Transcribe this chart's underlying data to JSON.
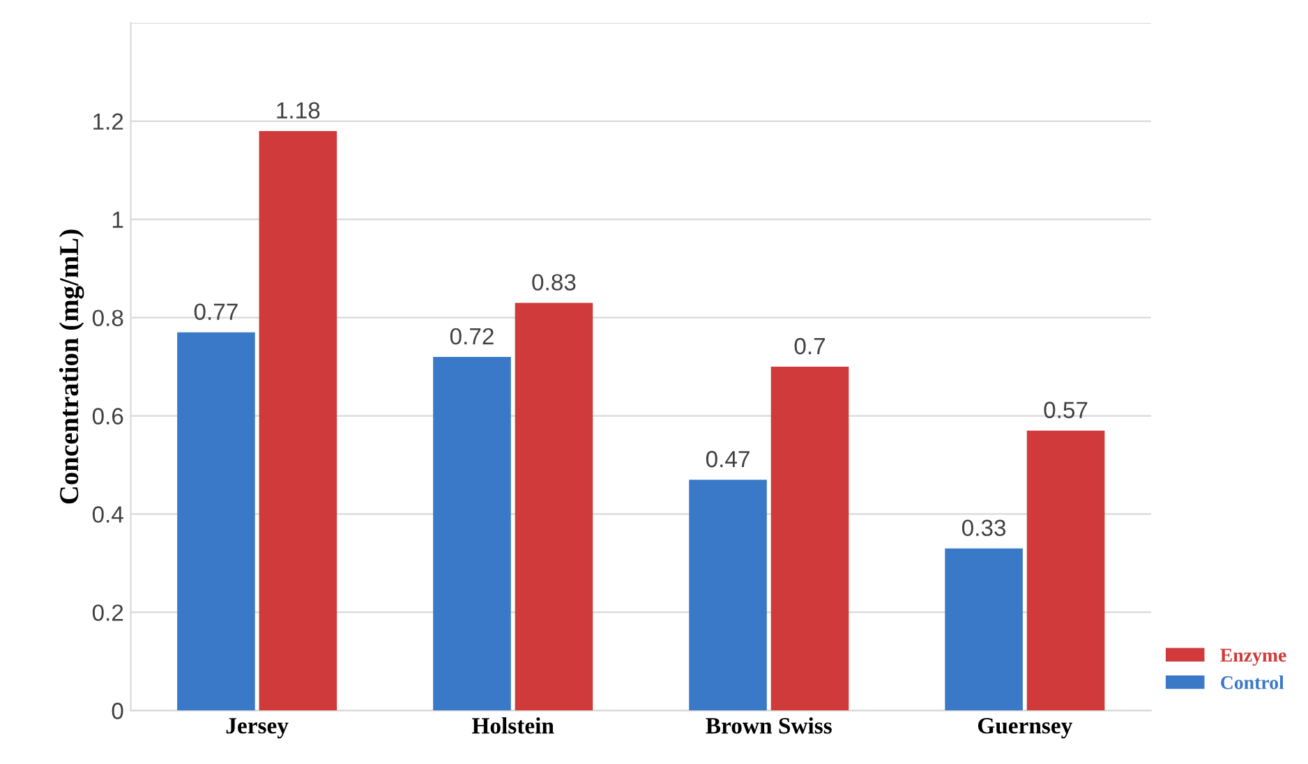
{
  "chart_data": {
    "type": "bar",
    "ylabel": "Concentration (mg/mL)",
    "categories": [
      "Jersey",
      "Holstein",
      "Brown Swiss",
      "Guernsey"
    ],
    "series": [
      {
        "name": "Control",
        "color": "#3a78c8",
        "values": [
          0.77,
          0.72,
          0.47,
          0.33
        ]
      },
      {
        "name": "Enzyme",
        "color": "#d03a3a",
        "values": [
          1.18,
          0.83,
          0.7,
          0.57
        ]
      }
    ],
    "ylim": [
      0,
      1.4
    ],
    "yticks": [
      0,
      0.2,
      0.4,
      0.6,
      0.8,
      1,
      1.2,
      {
        "value": 1.4,
        "label": null
      }
    ],
    "grid": "y",
    "legend": "bottom right",
    "data_labels": true
  }
}
